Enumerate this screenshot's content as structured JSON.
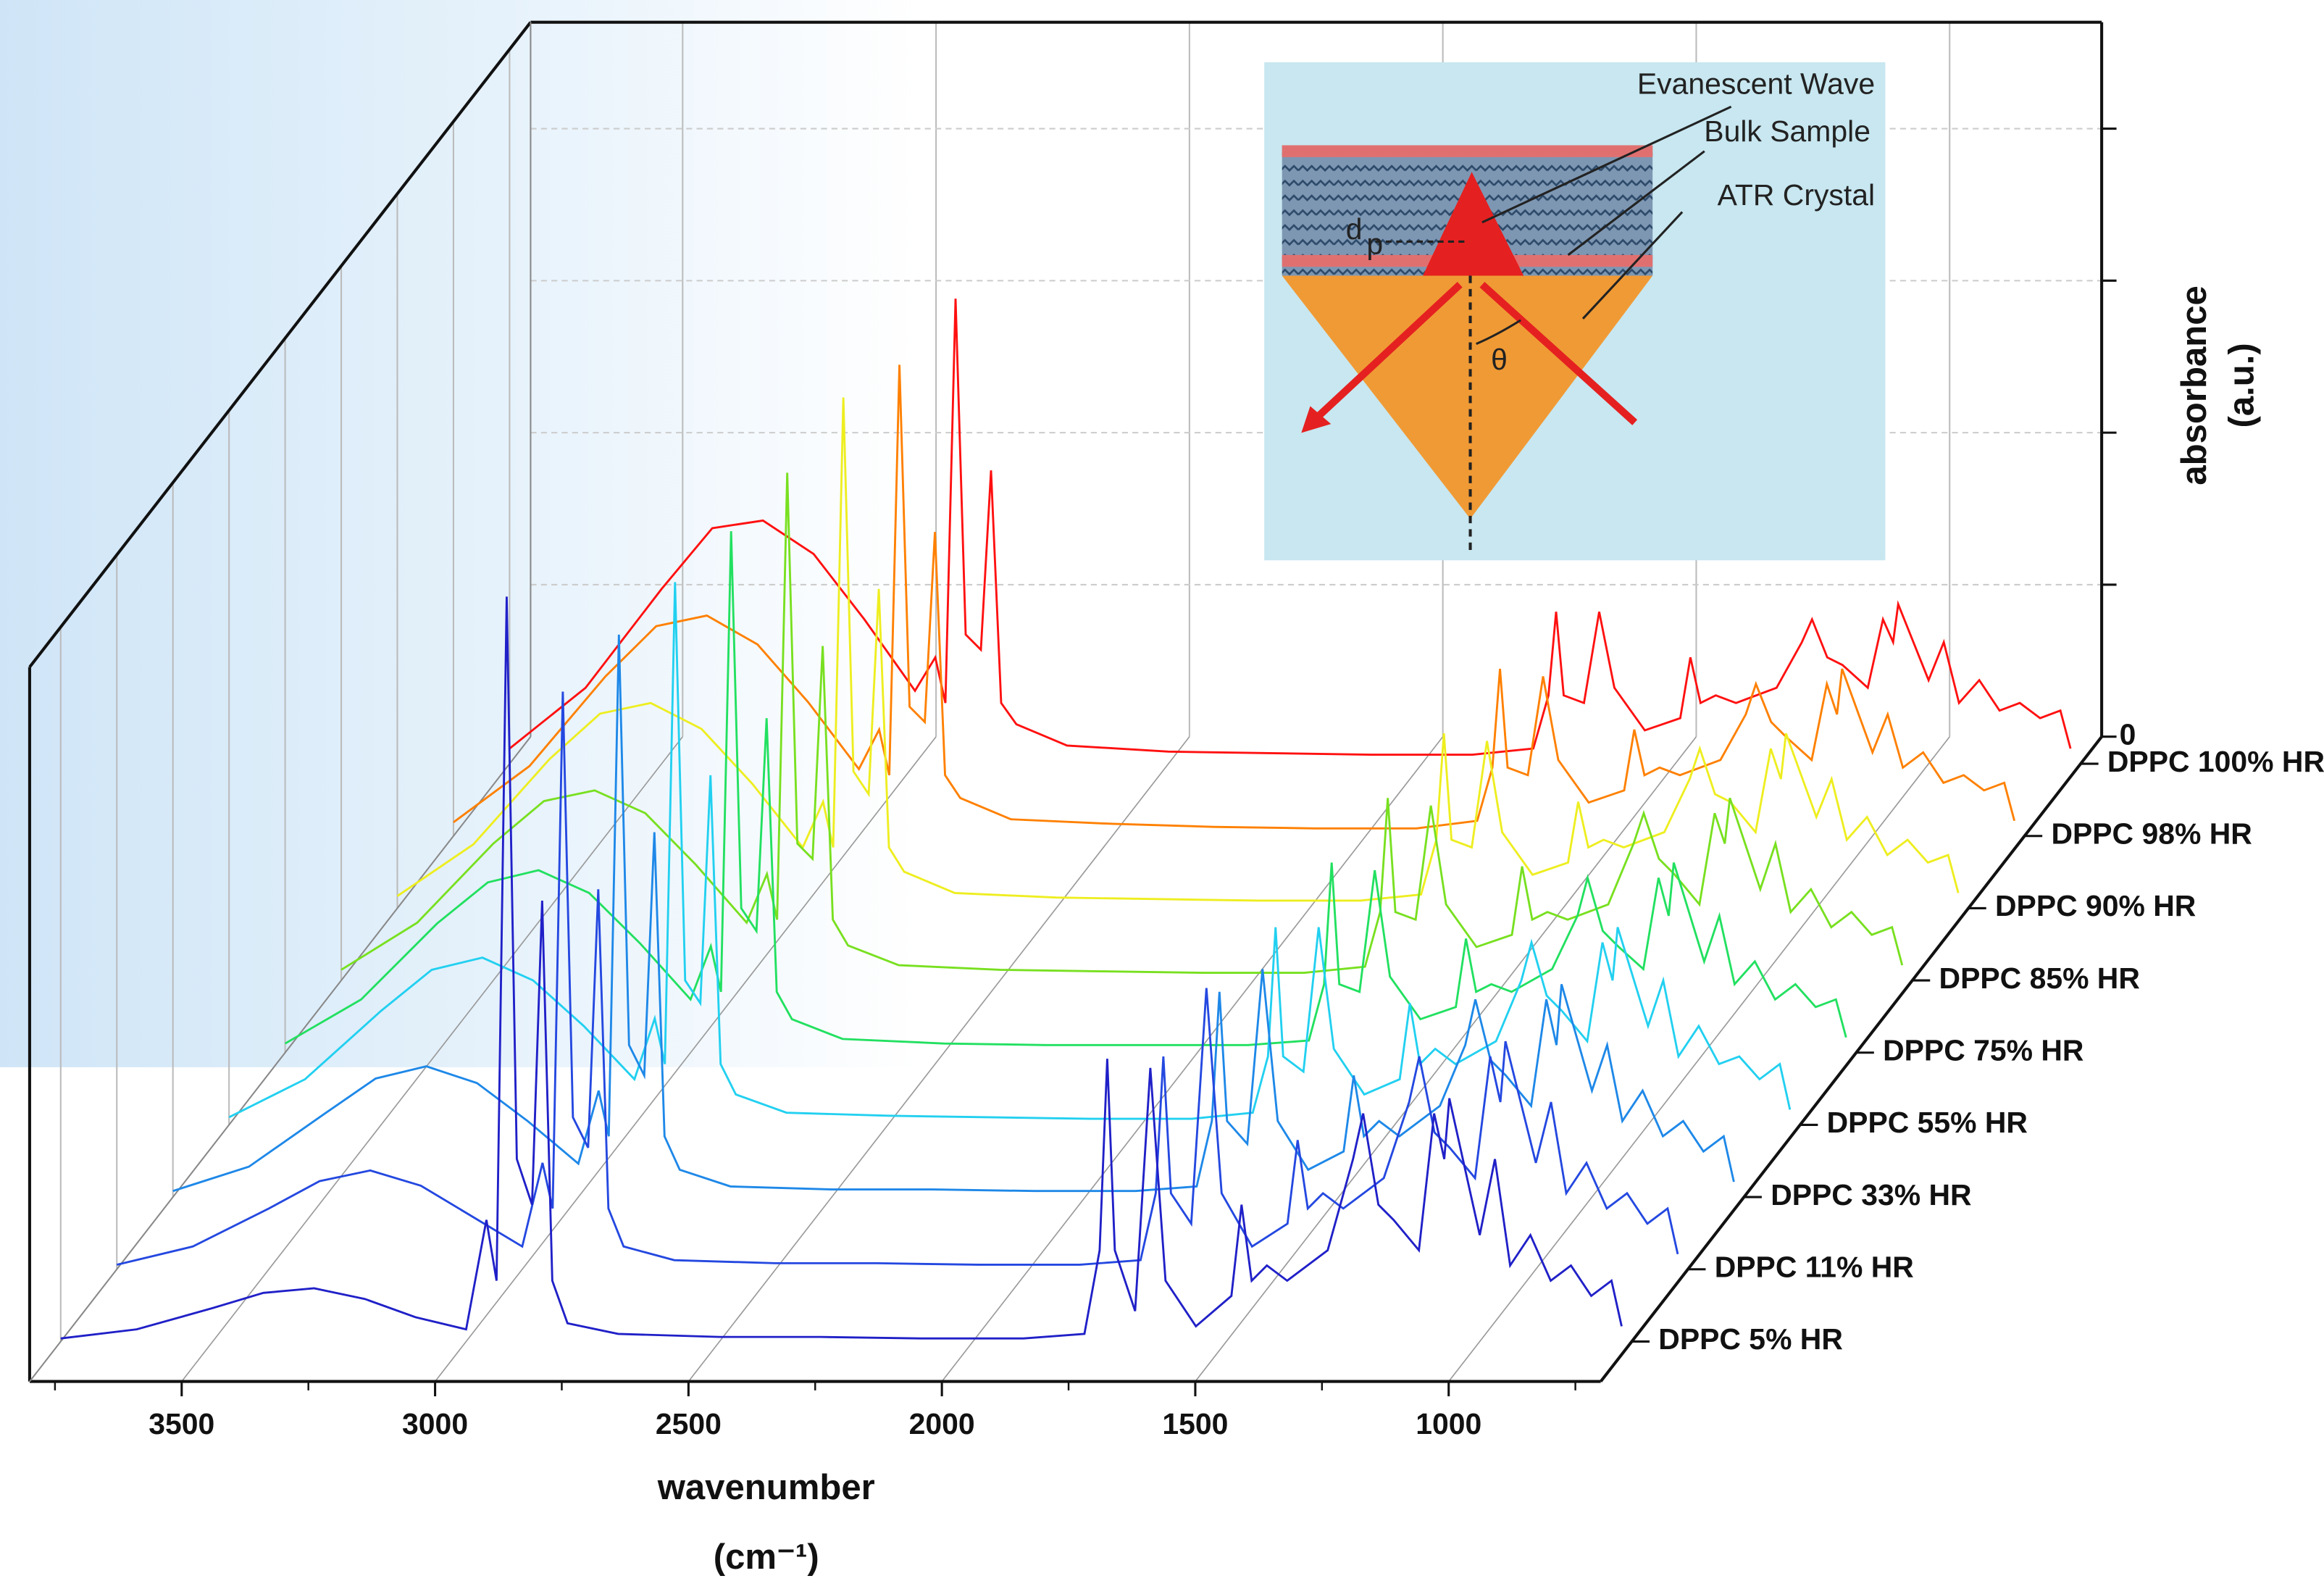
{
  "chart_data": {
    "type": "waterfall",
    "xlabel": "wavenumber",
    "xunit": "(cm⁻¹)",
    "ylabel": [
      "absorbance",
      "(a.u.)"
    ],
    "xlim": [
      3800,
      700
    ],
    "xticks": [
      3500,
      3000,
      2500,
      2000,
      1500,
      1000
    ],
    "xminorticks": [
      3750,
      3250,
      2750,
      2250,
      1750,
      1250,
      750
    ],
    "ylim": [
      0,
      4.7
    ],
    "yticks": [
      0
    ],
    "yminorticks": [
      1,
      2,
      3,
      4
    ],
    "grid": true,
    "annotations": [
      "Evanescent Wave",
      "Bulk Sample",
      "ATR Crystal",
      "d",
      "p",
      "θ"
    ],
    "x": [
      3800,
      3650,
      3500,
      3400,
      3300,
      3200,
      3100,
      3000,
      2960,
      2940,
      2920,
      2900,
      2870,
      2850,
      2830,
      2800,
      2700,
      2500,
      2300,
      2100,
      1900,
      1780,
      1750,
      1735,
      1720,
      1680,
      1650,
      1620,
      1560,
      1490,
      1470,
      1450,
      1420,
      1380,
      1300,
      1250,
      1230,
      1200,
      1170,
      1120,
      1090,
      1070,
      1060,
      1000,
      970,
      940,
      900,
      860,
      820,
      780,
      740,
      720
    ],
    "series": [
      {
        "name": "DPPC 5% HR",
        "color": "#2020c8",
        "values": [
          0.02,
          0.08,
          0.22,
          0.32,
          0.35,
          0.28,
          0.16,
          0.08,
          0.8,
          0.4,
          4.9,
          1.2,
          0.9,
          2.9,
          0.4,
          0.12,
          0.05,
          0.03,
          0.03,
          0.02,
          0.02,
          0.05,
          0.6,
          1.86,
          0.6,
          0.2,
          1.8,
          0.4,
          0.1,
          0.3,
          0.9,
          0.4,
          0.5,
          0.4,
          0.6,
          1.2,
          1.5,
          0.9,
          0.8,
          0.6,
          1.5,
          1.2,
          1.6,
          0.7,
          1.2,
          0.5,
          0.7,
          0.4,
          0.5,
          0.3,
          0.4,
          0.1
        ]
      },
      {
        "name": "DPPC 11% HR",
        "color": "#2448e0",
        "values": [
          0.03,
          0.15,
          0.4,
          0.58,
          0.65,
          0.55,
          0.35,
          0.15,
          0.7,
          0.4,
          3.8,
          1.0,
          0.8,
          2.5,
          0.4,
          0.15,
          0.06,
          0.04,
          0.04,
          0.03,
          0.03,
          0.06,
          0.5,
          1.4,
          0.5,
          0.3,
          1.85,
          0.5,
          0.15,
          0.3,
          0.85,
          0.4,
          0.5,
          0.4,
          0.6,
          1.1,
          1.4,
          0.9,
          0.8,
          0.6,
          1.4,
          1.1,
          1.5,
          0.7,
          1.1,
          0.5,
          0.7,
          0.4,
          0.5,
          0.3,
          0.4,
          0.1
        ]
      },
      {
        "name": "DPPC 33% HR",
        "color": "#1e88e8",
        "values": [
          0.04,
          0.2,
          0.55,
          0.78,
          0.86,
          0.75,
          0.5,
          0.22,
          0.7,
          0.4,
          3.7,
          1.0,
          0.8,
          2.4,
          0.4,
          0.18,
          0.07,
          0.05,
          0.05,
          0.04,
          0.04,
          0.07,
          0.5,
          1.35,
          0.5,
          0.35,
          1.5,
          0.5,
          0.18,
          0.3,
          0.8,
          0.4,
          0.5,
          0.4,
          0.6,
          1.0,
          1.3,
          0.9,
          0.8,
          0.6,
          1.3,
          1.0,
          1.4,
          0.7,
          1.0,
          0.5,
          0.7,
          0.4,
          0.5,
          0.3,
          0.4,
          0.1
        ]
      },
      {
        "name": "DPPC 55% HR",
        "color": "#22d0f0",
        "values": [
          0.05,
          0.3,
          0.75,
          1.02,
          1.1,
          0.95,
          0.65,
          0.3,
          0.7,
          0.4,
          3.57,
          0.95,
          0.8,
          2.3,
          0.4,
          0.2,
          0.08,
          0.06,
          0.05,
          0.04,
          0.04,
          0.08,
          0.45,
          1.3,
          0.45,
          0.35,
          1.3,
          0.5,
          0.2,
          0.3,
          0.8,
          0.4,
          0.5,
          0.4,
          0.55,
          0.95,
          1.2,
          0.85,
          0.75,
          0.55,
          1.2,
          0.95,
          1.3,
          0.65,
          0.95,
          0.45,
          0.65,
          0.4,
          0.45,
          0.3,
          0.4,
          0.1
        ]
      },
      {
        "name": "DPPC 75% HR",
        "color": "#22e060",
        "values": [
          0.06,
          0.35,
          0.85,
          1.12,
          1.2,
          1.05,
          0.72,
          0.35,
          0.7,
          0.4,
          3.43,
          0.95,
          0.8,
          2.2,
          0.4,
          0.22,
          0.09,
          0.06,
          0.05,
          0.05,
          0.05,
          0.08,
          0.45,
          1.25,
          0.45,
          0.4,
          1.2,
          0.5,
          0.22,
          0.3,
          0.75,
          0.4,
          0.45,
          0.4,
          0.55,
          0.9,
          1.15,
          0.8,
          0.7,
          0.55,
          1.15,
          0.9,
          1.25,
          0.6,
          0.9,
          0.45,
          0.6,
          0.35,
          0.45,
          0.3,
          0.35,
          0.1
        ]
      },
      {
        "name": "DPPC 85% HR",
        "color": "#78e020",
        "values": [
          0.07,
          0.38,
          0.9,
          1.18,
          1.25,
          1.1,
          0.76,
          0.38,
          0.7,
          0.4,
          3.34,
          0.9,
          0.8,
          2.2,
          0.4,
          0.23,
          0.1,
          0.07,
          0.06,
          0.05,
          0.05,
          0.09,
          0.45,
          1.2,
          0.45,
          0.4,
          1.15,
          0.5,
          0.22,
          0.3,
          0.75,
          0.4,
          0.45,
          0.4,
          0.5,
          0.9,
          1.1,
          0.8,
          0.7,
          0.5,
          1.1,
          0.9,
          1.2,
          0.6,
          0.9,
          0.45,
          0.6,
          0.35,
          0.45,
          0.3,
          0.35,
          0.1
        ]
      },
      {
        "name": "DPPC 90% HR",
        "color": "#eeee20",
        "values": [
          0.08,
          0.42,
          0.98,
          1.28,
          1.35,
          1.18,
          0.82,
          0.4,
          0.7,
          0.4,
          3.36,
          0.9,
          0.75,
          2.1,
          0.4,
          0.24,
          0.1,
          0.07,
          0.06,
          0.05,
          0.05,
          0.09,
          0.45,
          1.15,
          0.45,
          0.4,
          1.1,
          0.5,
          0.22,
          0.3,
          0.7,
          0.4,
          0.45,
          0.4,
          0.5,
          0.85,
          1.05,
          0.75,
          0.7,
          0.5,
          1.05,
          0.85,
          1.15,
          0.6,
          0.85,
          0.45,
          0.6,
          0.35,
          0.45,
          0.3,
          0.35,
          0.1
        ]
      },
      {
        "name": "DPPC 98% HR",
        "color": "#ff8000",
        "values": [
          0.09,
          0.46,
          1.05,
          1.38,
          1.45,
          1.26,
          0.88,
          0.44,
          0.7,
          0.4,
          3.1,
          0.85,
          0.75,
          2.0,
          0.4,
          0.25,
          0.11,
          0.08,
          0.06,
          0.05,
          0.05,
          0.1,
          0.45,
          1.1,
          0.45,
          0.4,
          1.05,
          0.5,
          0.22,
          0.3,
          0.7,
          0.4,
          0.45,
          0.4,
          0.5,
          0.8,
          1.0,
          0.75,
          0.65,
          0.5,
          1.0,
          0.8,
          1.1,
          0.55,
          0.8,
          0.45,
          0.55,
          0.35,
          0.4,
          0.3,
          0.35,
          0.1
        ]
      },
      {
        "name": "DPPC 100% HR",
        "color": "#ff1010",
        "values": [
          0.1,
          0.5,
          1.15,
          1.55,
          1.6,
          1.38,
          0.95,
          0.48,
          0.7,
          0.4,
          3.06,
          0.85,
          0.75,
          1.93,
          0.4,
          0.26,
          0.12,
          0.08,
          0.07,
          0.06,
          0.06,
          0.1,
          0.45,
          1.0,
          0.45,
          0.4,
          1.0,
          0.5,
          0.22,
          0.3,
          0.7,
          0.4,
          0.45,
          0.4,
          0.5,
          0.8,
          0.95,
          0.7,
          0.65,
          0.5,
          0.95,
          0.8,
          1.05,
          0.55,
          0.8,
          0.4,
          0.55,
          0.35,
          0.4,
          0.3,
          0.35,
          0.1
        ]
      }
    ]
  }
}
